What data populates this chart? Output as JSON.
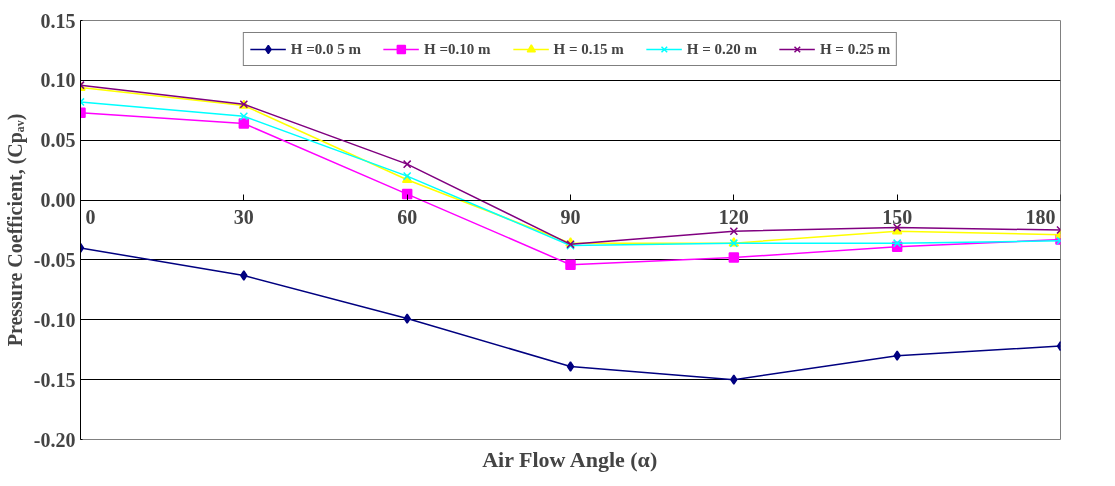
{
  "chart_data": {
    "type": "line",
    "xlabel": "Air Flow Angle (α)",
    "ylabel": "Pressure Coefficient, (Cpₐᵥ)",
    "x": [
      0,
      30,
      60,
      90,
      120,
      150,
      180
    ],
    "xlim": [
      0,
      180
    ],
    "xticks": [
      0,
      30,
      60,
      90,
      120,
      150,
      180
    ],
    "ylim": [
      -0.2,
      0.15
    ],
    "yticks": [
      {
        "value": -0.2,
        "label": "-0.20"
      },
      {
        "value": -0.15,
        "label": "-0.15"
      },
      {
        "value": -0.1,
        "label": "-0.10"
      },
      {
        "value": -0.05,
        "label": "-0.05"
      },
      {
        "value": 0,
        "label": "0.00"
      },
      {
        "value": 0.05,
        "label": "0.05"
      },
      {
        "value": 0.1,
        "label": "0.10"
      },
      {
        "value": 0.15,
        "label": "0.15"
      }
    ],
    "grid": "y",
    "legend": "top",
    "series": [
      {
        "name": "H =0.0 5 m",
        "color": "#000080",
        "marker": "diamond",
        "values": [
          -0.04,
          -0.063,
          -0.099,
          -0.139,
          -0.15,
          -0.13,
          -0.122
        ]
      },
      {
        "name": "H =0.10 m",
        "color": "#ff00ff",
        "marker": "square",
        "values": [
          0.073,
          0.064,
          0.005,
          -0.054,
          -0.048,
          -0.039,
          -0.033
        ]
      },
      {
        "name": "H = 0.15 m",
        "color": "#ffff00",
        "marker": "triangle",
        "values": [
          0.094,
          0.079,
          0.017,
          -0.036,
          -0.036,
          -0.026,
          -0.029
        ]
      },
      {
        "name": "H = 0.20 m",
        "color": "#00ffff",
        "marker": "cross",
        "values": [
          0.082,
          0.07,
          0.02,
          -0.038,
          -0.036,
          -0.036,
          -0.034
        ]
      },
      {
        "name": "H = 0.25 m",
        "color": "#800080",
        "marker": "cross",
        "values": [
          0.096,
          0.08,
          0.03,
          -0.037,
          -0.026,
          -0.023,
          -0.025
        ]
      }
    ]
  }
}
